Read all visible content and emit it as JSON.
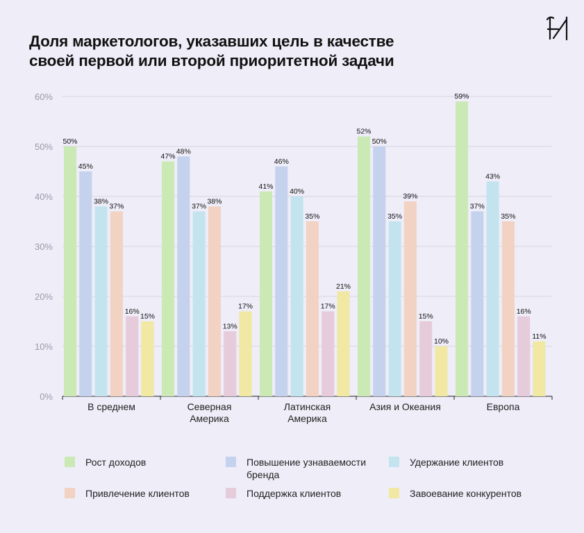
{
  "title_lines": [
    "Доля маркетологов, указавших цель в качестве",
    "своей первой или второй приоритетной задачи"
  ],
  "logo_icon": "brand-logo-icon",
  "colors": {
    "background": "#eeedf8",
    "grid": "#d6d5e0",
    "axis": "#444444",
    "series": [
      "#cbe9b5",
      "#c5d2ee",
      "#c3e4ef",
      "#f2d2c3",
      "#e6cbdb",
      "#f0e8a3"
    ]
  },
  "chart_data": {
    "type": "bar",
    "title": "Доля маркетологов, указавших цель в качестве своей первой или второй приоритетной задачи",
    "categories": [
      [
        "В среднем"
      ],
      [
        "Северная",
        "Америка"
      ],
      [
        "Латинская",
        "Америка"
      ],
      [
        "Азия и Океания"
      ],
      [
        "Европа"
      ]
    ],
    "series": [
      {
        "name": "Рост доходов",
        "values": [
          50,
          47,
          41,
          52,
          59
        ]
      },
      {
        "name": "Повышение узнаваемости бренда",
        "values": [
          45,
          48,
          46,
          50,
          37
        ]
      },
      {
        "name": "Удержание клиентов",
        "values": [
          38,
          37,
          40,
          35,
          43
        ]
      },
      {
        "name": "Привлечение клиентов",
        "values": [
          37,
          38,
          35,
          39,
          35
        ]
      },
      {
        "name": "Поддержка клиентов",
        "values": [
          16,
          13,
          17,
          15,
          16
        ]
      },
      {
        "name": "Завоевание конкурентов",
        "values": [
          15,
          17,
          21,
          10,
          11
        ]
      }
    ],
    "value_labels": [
      [
        "50%",
        "47%",
        "41%",
        "52%",
        "59%"
      ],
      [
        "45%",
        "48%",
        "46%",
        "50%",
        "37%"
      ],
      [
        "38%",
        "37%",
        "40%",
        "35%",
        "43%"
      ],
      [
        "37%",
        "38%",
        "35%",
        "39%",
        "35%"
      ],
      [
        "16%",
        "13%",
        "17%",
        "15%",
        "16%"
      ],
      [
        "15%",
        "17%",
        "21%",
        "10%",
        "11%"
      ]
    ],
    "yticks": [
      0,
      10,
      20,
      30,
      40,
      50,
      60
    ],
    "ytick_labels": [
      "0%",
      "10%",
      "20%",
      "30%",
      "40%",
      "50%",
      "60%"
    ],
    "ylim": [
      0,
      60
    ],
    "grid": true,
    "legend_position": "bottom"
  },
  "legend": [
    [
      "Рост доходов"
    ],
    [
      "Повышение узнаваемости",
      "бренда"
    ],
    [
      "Удержание клиентов"
    ],
    [
      "Привлечение клиентов"
    ],
    [
      "Поддержка клиентов"
    ],
    [
      "Завоевание конкурентов"
    ]
  ]
}
